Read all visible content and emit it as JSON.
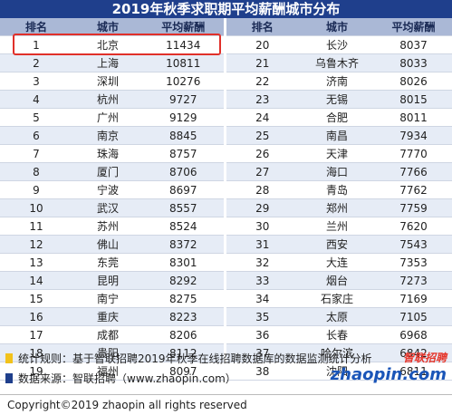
{
  "title": "2019年秋季求职期平均薪酬城市分布",
  "headers": [
    "排名",
    "城市",
    "平均薪酬",
    "排名",
    "城市",
    "平均薪酬"
  ],
  "left_rows": [
    [
      "1",
      "北京",
      "11434"
    ],
    [
      "2",
      "上海",
      "10811"
    ],
    [
      "3",
      "深圳",
      "10276"
    ],
    [
      "4",
      "杭州",
      "9727"
    ],
    [
      "5",
      "广州",
      "9129"
    ],
    [
      "6",
      "南京",
      "8845"
    ],
    [
      "7",
      "珠海",
      "8757"
    ],
    [
      "8",
      "厦门",
      "8706"
    ],
    [
      "9",
      "宁波",
      "8697"
    ],
    [
      "10",
      "武汉",
      "8557"
    ],
    [
      "11",
      "苏州",
      "8524"
    ],
    [
      "12",
      "佛山",
      "8372"
    ],
    [
      "13",
      "东莞",
      "8301"
    ],
    [
      "14",
      "昆明",
      "8292"
    ],
    [
      "15",
      "南宁",
      "8275"
    ],
    [
      "16",
      "重庆",
      "8223"
    ],
    [
      "17",
      "成都",
      "8206"
    ],
    [
      "18",
      "贵阳",
      "8112"
    ],
    [
      "19",
      "福州",
      "8097"
    ]
  ],
  "right_rows": [
    [
      "20",
      "长沙",
      "8037"
    ],
    [
      "21",
      "乌鲁木齐",
      "8033"
    ],
    [
      "22",
      "济南",
      "8026"
    ],
    [
      "23",
      "无锡",
      "8015"
    ],
    [
      "24",
      "合肥",
      "8011"
    ],
    [
      "25",
      "南昌",
      "7934"
    ],
    [
      "26",
      "天津",
      "7770"
    ],
    [
      "27",
      "海口",
      "7766"
    ],
    [
      "28",
      "青岛",
      "7762"
    ],
    [
      "29",
      "郑州",
      "7759"
    ],
    [
      "30",
      "兰州",
      "7620"
    ],
    [
      "31",
      "西安",
      "7543"
    ],
    [
      "32",
      "大连",
      "7353"
    ],
    [
      "33",
      "烟台",
      "7273"
    ],
    [
      "34",
      "石家庄",
      "7169"
    ],
    [
      "35",
      "太原",
      "7105"
    ],
    [
      "36",
      "长春",
      "6968"
    ],
    [
      "37",
      "哈尔滨",
      "6842"
    ],
    [
      "38",
      "沈阳",
      "6811"
    ]
  ],
  "footer": {
    "rule": "统计规则：基于智联招聘2019年秋季在线招聘数据库的数据监测统计分析",
    "source": "数据来源：智联招聘（www.zhaopin.com）",
    "rule_color": "#f2c21b",
    "source_color": "#1f3f8c"
  },
  "logo": {
    "cn": "智联招聘",
    "en": "zhaopin.com"
  },
  "copyright": "Copyright©2019 zhaopin all rights reserved"
}
